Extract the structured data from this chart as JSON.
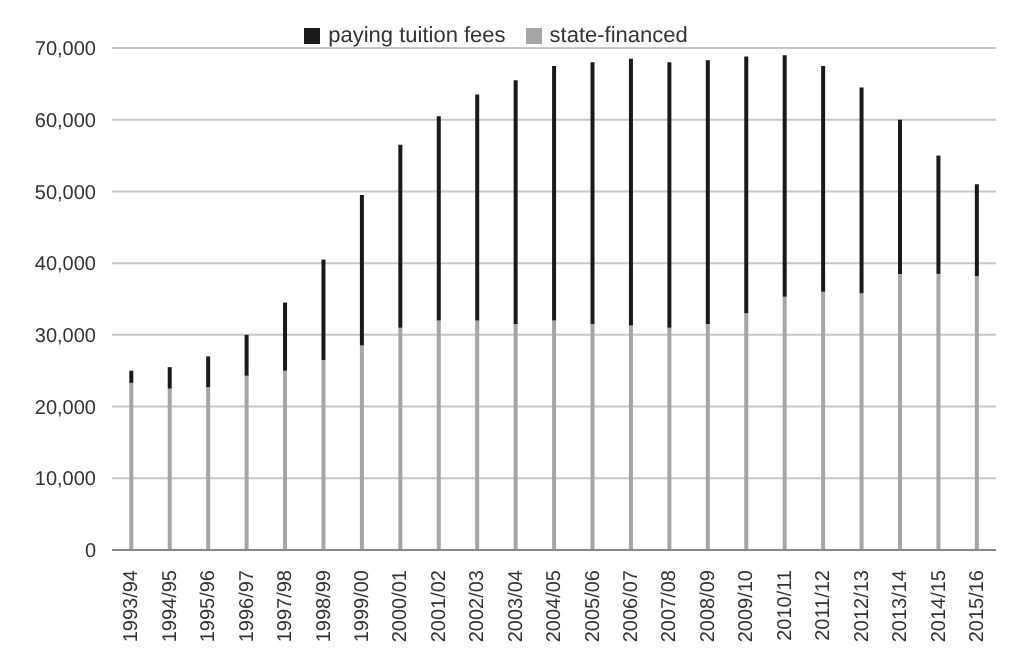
{
  "chart_data": {
    "type": "bar",
    "stacked": true,
    "categories": [
      "1993/94",
      "1994/95",
      "1995/96",
      "1996/97",
      "1997/98",
      "1998/99",
      "1999/00",
      "2000/01",
      "2001/02",
      "2002/03",
      "2003/04",
      "2004/05",
      "2005/06",
      "2006/07",
      "2007/08",
      "2008/09",
      "2009/10",
      "2010/11",
      "2011/12",
      "2012/13",
      "2013/14",
      "2014/15",
      "2015/16"
    ],
    "series": [
      {
        "name": "state-financed",
        "color": "#a6a6a6",
        "values": [
          23300,
          22500,
          22700,
          24300,
          25000,
          26500,
          28500,
          31000,
          32000,
          32000,
          31500,
          32000,
          31500,
          31300,
          31000,
          31500,
          33000,
          35300,
          36000,
          35800,
          38500,
          38500,
          38200
        ]
      },
      {
        "name": "paying tuition fees",
        "color": "#1a1a1a",
        "values": [
          1700,
          3000,
          4300,
          5700,
          9500,
          14000,
          21000,
          25500,
          28500,
          31500,
          34000,
          35500,
          36500,
          37200,
          37000,
          36800,
          35800,
          33700,
          31500,
          28700,
          21500,
          16500,
          12800
        ]
      }
    ],
    "ylim": [
      0,
      70000
    ],
    "yticks": [
      {
        "value": 0,
        "label": "0"
      },
      {
        "value": 10000,
        "label": "10,000"
      },
      {
        "value": 20000,
        "label": "20,000"
      },
      {
        "value": 30000,
        "label": "30,000"
      },
      {
        "value": 40000,
        "label": "40,000"
      },
      {
        "value": 50000,
        "label": "50,000"
      },
      {
        "value": 60000,
        "label": "60,000"
      },
      {
        "value": 70000,
        "label": "70,000"
      }
    ],
    "grid": "y",
    "legend": "top"
  }
}
